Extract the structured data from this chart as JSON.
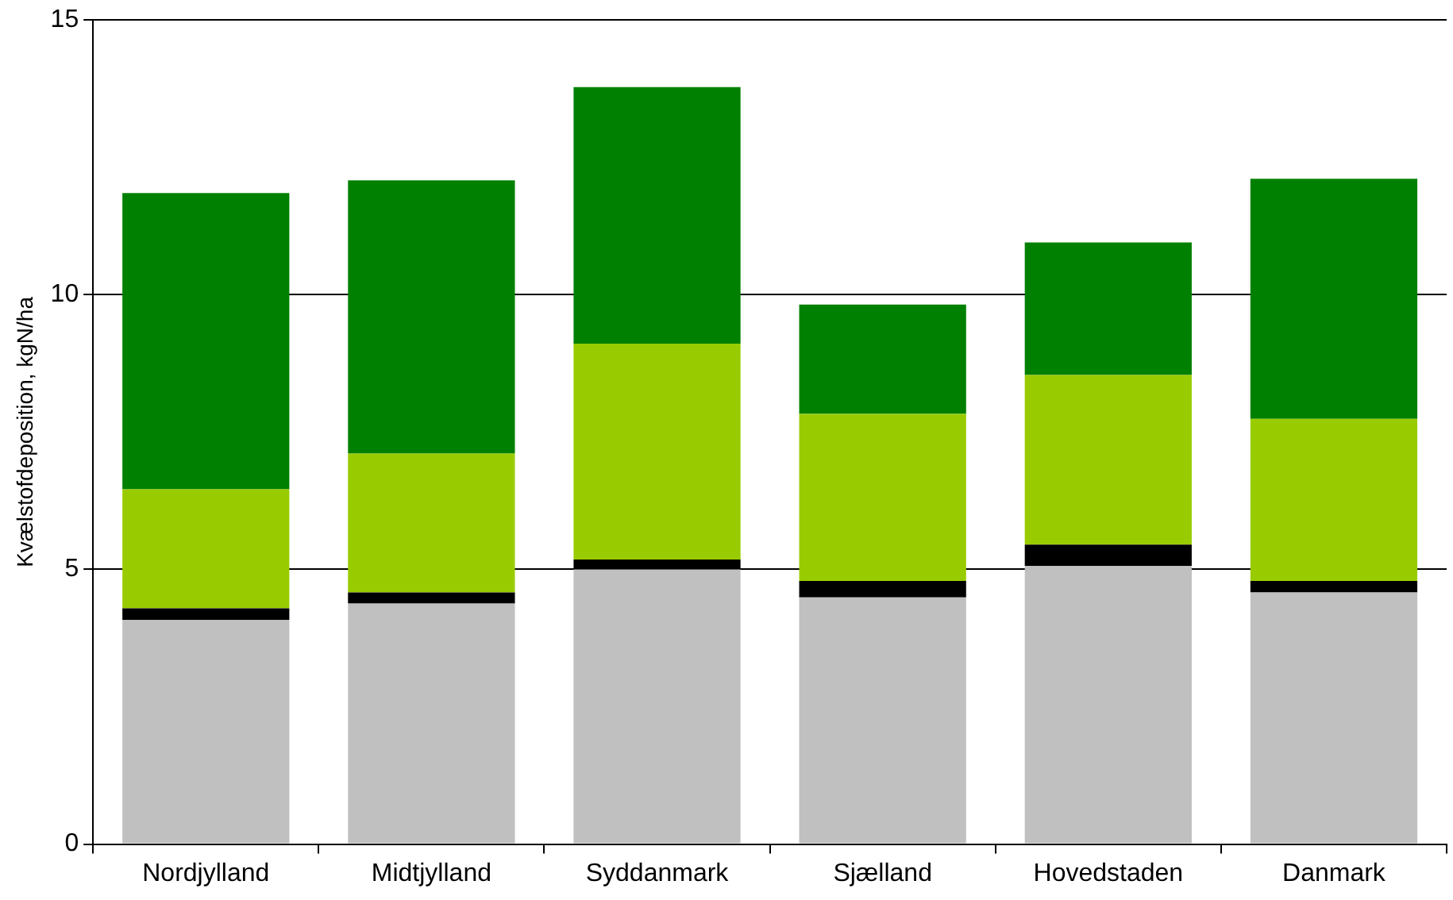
{
  "chart_data": {
    "type": "bar",
    "stacked": true,
    "ylabel": "Kvælstofdeposition, kgN/ha",
    "categories": [
      "Nordjylland",
      "Midtjylland",
      "Syddanmark",
      "Sjælland",
      "Hovedstaden",
      "Danmark"
    ],
    "series": [
      {
        "color": "#c0c0c0",
        "values": [
          4.08,
          4.38,
          5.0,
          4.49,
          5.06,
          4.58
        ]
      },
      {
        "color": "#000000",
        "values": [
          0.21,
          0.2,
          0.18,
          0.3,
          0.39,
          0.21
        ]
      },
      {
        "color": "#99cc00",
        "values": [
          2.17,
          2.53,
          3.93,
          3.04,
          3.09,
          2.95
        ]
      },
      {
        "color": "#008000",
        "values": [
          5.39,
          4.97,
          4.67,
          1.99,
          2.41,
          4.37
        ]
      }
    ],
    "ylim": [
      0,
      15
    ],
    "yticks": [
      0,
      5,
      10,
      15
    ],
    "grid": "y",
    "legend": false
  }
}
